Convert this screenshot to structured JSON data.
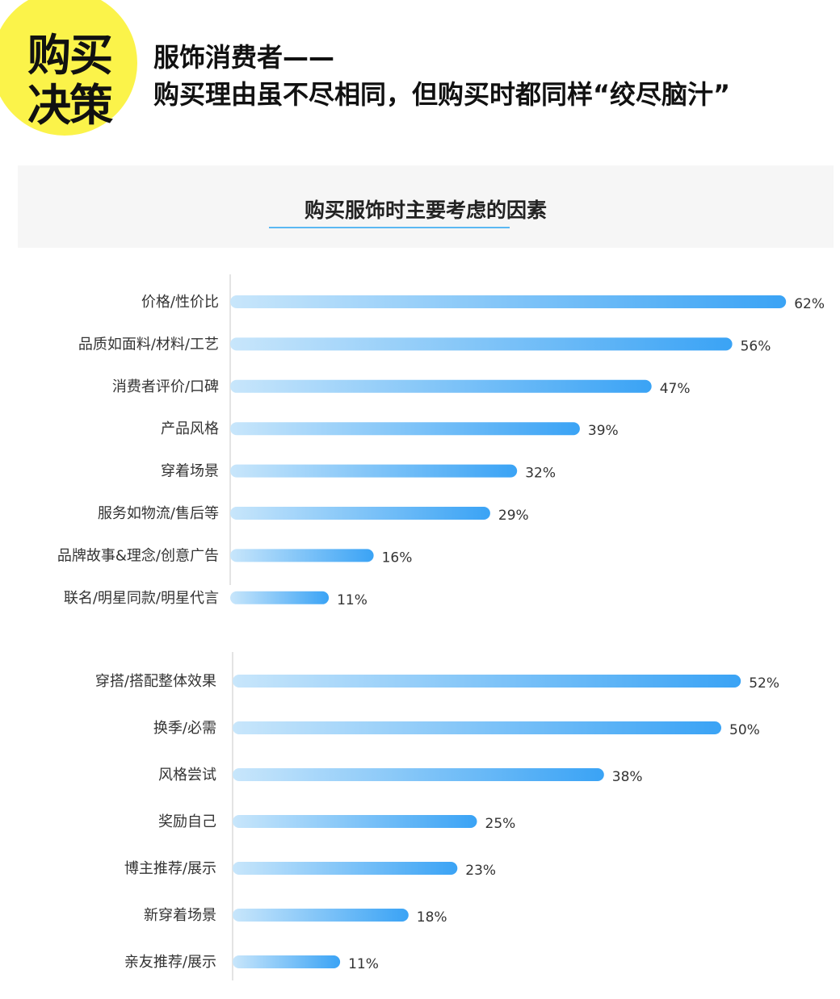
{
  "badge": {
    "line1": "购买",
    "line2": "决策"
  },
  "headline": {
    "line1": "服饰消费者——",
    "line2": "购买理由虽不尽相同，但购买时都同样“绞尽脑汁”"
  },
  "chart_title": "购买服饰时主要考虑的因素",
  "colors": {
    "bar_start": "#c8e6fb",
    "bar_end": "#3aa3f5",
    "badge": "#fbf34a",
    "accent_line": "#5bb8f2"
  },
  "chart_data": [
    {
      "type": "bar",
      "orientation": "horizontal",
      "categories": [
        "价格/性价比",
        "品质如面料/材料/工艺",
        "消费者评价/口碑",
        "产品风格",
        "穿着场景",
        "服务如物流/售后等",
        "品牌故事&理念/创意广告",
        "联名/明星同款/明星代言"
      ],
      "values": [
        62,
        56,
        47,
        39,
        32,
        29,
        16,
        11
      ],
      "value_labels": [
        "62%",
        "56%",
        "47%",
        "39%",
        "32%",
        "29%",
        "16%",
        "11%"
      ],
      "unit": "%"
    },
    {
      "type": "bar",
      "orientation": "horizontal",
      "categories": [
        "穿搭/搭配整体效果",
        "换季/必需",
        "风格尝试",
        "奖励自己",
        "博主推荐/展示",
        "新穿着场景",
        "亲友推荐/展示"
      ],
      "values": [
        52,
        50,
        38,
        25,
        23,
        18,
        11
      ],
      "value_labels": [
        "52%",
        "50%",
        "38%",
        "25%",
        "23%",
        "18%",
        "11%"
      ],
      "unit": "%"
    }
  ]
}
